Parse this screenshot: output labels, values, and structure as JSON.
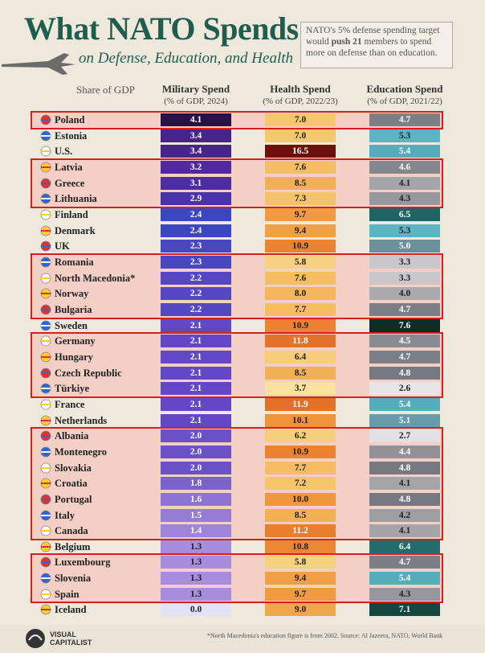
{
  "header": {
    "title": "What NATO Spends",
    "subtitle": "on Defense, Education, and Health",
    "note": {
      "before": "NATO's 5% defense spending target would ",
      "bold": "push 21",
      "after": " members to spend more on defense than on education."
    }
  },
  "table": {
    "row_header": "Share of GDP",
    "columns": [
      {
        "title": "Military Spend",
        "subtitle": "(% of GDP, 2024)"
      },
      {
        "title": "Health Spend",
        "subtitle": "(% of GDP, 2022/23)"
      },
      {
        "title": "Education Spend",
        "subtitle": "(% of GDP, 2021/22)"
      }
    ],
    "rows": [
      [
        "Poland",
        "4.1",
        "7.0",
        "4.7"
      ],
      [
        "Estonia",
        "3.4",
        "7.0",
        "5.3"
      ],
      [
        "U.S.",
        "3.4",
        "16.5",
        "5.4"
      ],
      [
        "Latvia",
        "3.2",
        "7.6",
        "4.6"
      ],
      [
        "Greece",
        "3.1",
        "8.5",
        "4.1"
      ],
      [
        "Lithuania",
        "2.9",
        "7.3",
        "4.3"
      ],
      [
        "Finland",
        "2.4",
        "9.7",
        "6.5"
      ],
      [
        "Denmark",
        "2.4",
        "9.4",
        "5.3"
      ],
      [
        "UK",
        "2.3",
        "10.9",
        "5.0"
      ],
      [
        "Romania",
        "2.3",
        "5.8",
        "3.3"
      ],
      [
        "North Macedonia*",
        "2.2",
        "7.6",
        "3.3"
      ],
      [
        "Norway",
        "2.2",
        "8.0",
        "4.0"
      ],
      [
        "Bulgaria",
        "2.2",
        "7.7",
        "4.7"
      ],
      [
        "Sweden",
        "2.1",
        "10.9",
        "7.6"
      ],
      [
        "Germany",
        "2.1",
        "11.8",
        "4.5"
      ],
      [
        "Hungary",
        "2.1",
        "6.4",
        "4.7"
      ],
      [
        "Czech Republic",
        "2.1",
        "8.5",
        "4.8"
      ],
      [
        "Türkiye",
        "2.1",
        "3.7",
        "2.6"
      ],
      [
        "France",
        "2.1",
        "11.9",
        "5.4"
      ],
      [
        "Netherlands",
        "2.1",
        "10.1",
        "5.1"
      ],
      [
        "Albania",
        "2.0",
        "6.2",
        "2.7"
      ],
      [
        "Montenegro",
        "2.0",
        "10.9",
        "4.4"
      ],
      [
        "Slovakia",
        "2.0",
        "7.7",
        "4.8"
      ],
      [
        "Croatia",
        "1.8",
        "7.2",
        "4.1"
      ],
      [
        "Portugal",
        "1.6",
        "10.0",
        "4.8"
      ],
      [
        "Italy",
        "1.5",
        "8.5",
        "4.2"
      ],
      [
        "Canada",
        "1.4",
        "11.2",
        "4.1"
      ],
      [
        "Belgium",
        "1.3",
        "10.8",
        "6.4"
      ],
      [
        "Luxembourg",
        "1.3",
        "5.8",
        "4.7"
      ],
      [
        "Slovenia",
        "1.3",
        "9.4",
        "5.4"
      ],
      [
        "Spain",
        "1.3",
        "9.7",
        "4.3"
      ],
      [
        "Iceland",
        "0.0",
        "9.0",
        "7.1"
      ]
    ]
  },
  "footer": {
    "brand": "VISUAL CAPITALIST",
    "source": "*North Macedonia's education figure is from 2002. Source: Al Jazeera, NATO, World Bank"
  }
}
